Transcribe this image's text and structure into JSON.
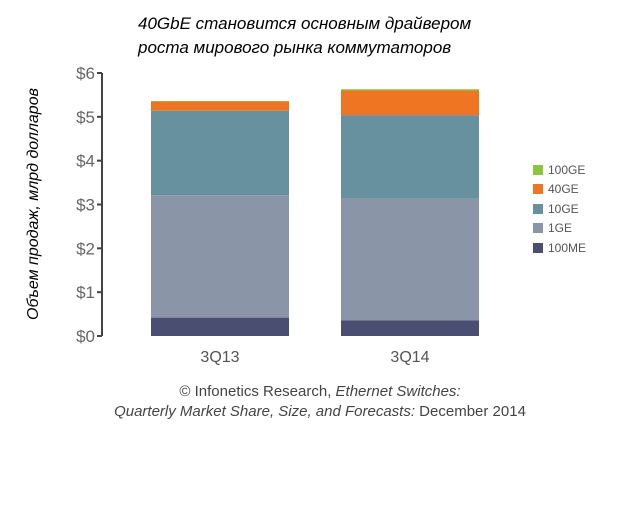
{
  "title_lines": [
    "40GbE становится основным драйвером",
    "роста мирового рынка коммутаторов"
  ],
  "source": {
    "line1_prefix": "© Infonetics Research, ",
    "line1_italic": "Ethernet Switches:",
    "line2_italic": "Quarterly Market Share, Size, and Forecasts:",
    "line2_suffix": " December 2014"
  },
  "chart_data": {
    "type": "bar",
    "stacked": true,
    "title": "40GbE становится основным драйвером роста мирового рынка коммутаторов",
    "ylabel": "Объем продаж, млрд долларов",
    "xlabel": "",
    "ylim": [
      0,
      6
    ],
    "yticks": [
      "$0",
      "$1",
      "$2",
      "$3",
      "$4",
      "$5",
      "$6"
    ],
    "grid": false,
    "legend_position": "right",
    "categories": [
      "3Q13",
      "3Q14"
    ],
    "series": [
      {
        "name": "100ME",
        "color": "#4a4f72",
        "values": [
          0.42,
          0.36
        ]
      },
      {
        "name": "1GE",
        "color": "#8a95a8",
        "values": [
          2.79,
          2.77
        ]
      },
      {
        "name": "10GE",
        "color": "#6891a0",
        "values": [
          1.93,
          1.91
        ]
      },
      {
        "name": "40GE",
        "color": "#f07522",
        "values": [
          0.21,
          0.56
        ]
      },
      {
        "name": "100GE",
        "color": "#8cc63f",
        "values": [
          0.01,
          0.03
        ]
      }
    ]
  }
}
